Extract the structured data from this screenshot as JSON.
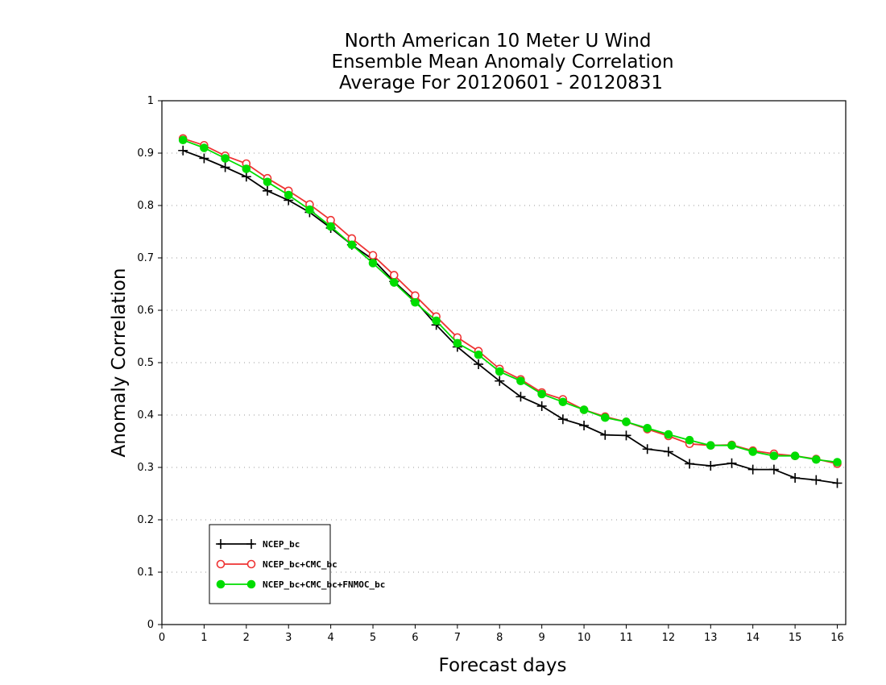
{
  "chart_data": {
    "type": "line",
    "title": [
      "North American 10 Meter U Wind",
      "Ensemble Mean Anomaly Correlation",
      "Average For 20120601 - 20120831"
    ],
    "xlabel": "Forecast days",
    "ylabel": "Anomaly Correlation",
    "xlim": [
      0,
      16.2
    ],
    "ylim": [
      0,
      1
    ],
    "xticks": [
      "0",
      "1",
      "2",
      "3",
      "4",
      "5",
      "6",
      "7",
      "8",
      "9",
      "10",
      "11",
      "12",
      "13",
      "14",
      "15",
      "16"
    ],
    "yticks": [
      "0",
      "0.1",
      "0.2",
      "0.3",
      "0.4",
      "0.5",
      "0.6",
      "0.7",
      "0.8",
      "0.9",
      "1"
    ],
    "grid": "horizontal dotted",
    "legend_position": "bottom-left",
    "x": [
      0.5,
      1,
      1.5,
      2,
      2.5,
      3,
      3.5,
      4,
      4.5,
      5,
      5.5,
      6,
      6.5,
      7,
      7.5,
      8,
      8.5,
      9,
      9.5,
      10,
      10.5,
      11,
      11.5,
      12,
      12.5,
      13,
      13.5,
      14,
      14.5,
      15,
      15.5,
      16
    ],
    "series": [
      {
        "name": "NCEP_bc",
        "color": "#000000",
        "marker": "plus",
        "values": [
          0.905,
          0.89,
          0.873,
          0.855,
          0.828,
          0.81,
          0.787,
          0.757,
          0.725,
          0.697,
          0.655,
          0.618,
          0.572,
          0.53,
          0.497,
          0.465,
          0.435,
          0.417,
          0.392,
          0.38,
          0.362,
          0.361,
          0.335,
          0.33,
          0.307,
          0.303,
          0.308,
          0.296,
          0.296,
          0.28,
          0.276,
          0.27
        ]
      },
      {
        "name": "NCEP_bc+CMC_bc",
        "color": "#ee3333",
        "marker": "open-circle",
        "values": [
          0.928,
          0.915,
          0.895,
          0.88,
          0.852,
          0.828,
          0.802,
          0.772,
          0.737,
          0.705,
          0.667,
          0.628,
          0.588,
          0.548,
          0.522,
          0.488,
          0.468,
          0.443,
          0.43,
          0.41,
          0.397,
          0.387,
          0.373,
          0.36,
          0.345,
          0.342,
          0.343,
          0.332,
          0.326,
          0.322,
          0.316,
          0.307
        ]
      },
      {
        "name": "NCEP_bc+CMC_bc+FNMOC_bc",
        "color": "#00dd00",
        "marker": "filled-circle",
        "values": [
          0.925,
          0.91,
          0.89,
          0.87,
          0.845,
          0.82,
          0.792,
          0.76,
          0.725,
          0.69,
          0.653,
          0.615,
          0.58,
          0.537,
          0.515,
          0.483,
          0.465,
          0.44,
          0.425,
          0.41,
          0.395,
          0.387,
          0.375,
          0.363,
          0.352,
          0.342,
          0.342,
          0.33,
          0.322,
          0.322,
          0.315,
          0.31
        ]
      }
    ]
  }
}
